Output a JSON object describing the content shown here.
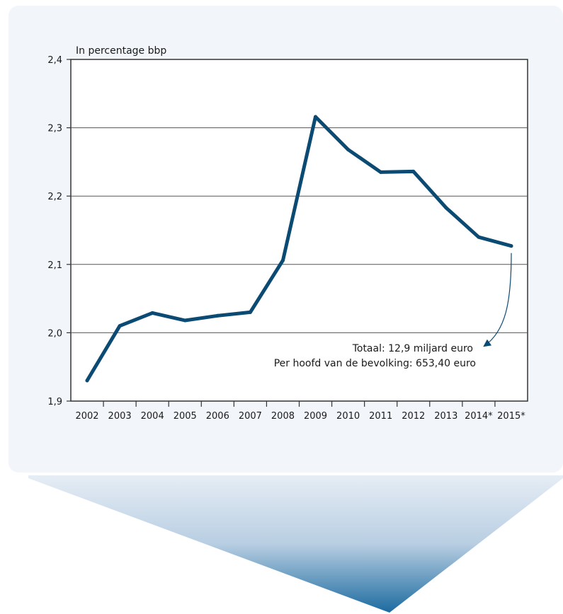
{
  "chart_data": {
    "type": "line",
    "ylabel": "In percentage bbp",
    "xlabel": "",
    "title": "",
    "categories": [
      "2002",
      "2003",
      "2004",
      "2005",
      "2006",
      "2007",
      "2008",
      "2009",
      "2010",
      "2011",
      "2012",
      "2013",
      "2014*",
      "2015*"
    ],
    "series": [
      {
        "values": [
          1.93,
          2.01,
          2.029,
          2.018,
          2.025,
          2.03,
          2.106,
          2.316,
          2.268,
          2.235,
          2.236,
          2.183,
          2.14,
          2.127
        ]
      }
    ],
    "ylim": [
      1.9,
      2.4
    ],
    "yticks": [
      "1,9",
      "2,0",
      "2,1",
      "2,2",
      "2,3",
      "2,4"
    ],
    "grid": true,
    "line_color": "#0b4a72",
    "annotation": {
      "line1": "Totaal: 12,9 miljard euro",
      "line2": "Per hoofd van de bevolking:  653,40 euro",
      "points_to": "2015*"
    }
  },
  "colors": {
    "panel_background": "#f2f5fa",
    "arrow_gradient_top": "#e6edf5",
    "arrow_gradient_bottom": "#1c6ba0"
  }
}
